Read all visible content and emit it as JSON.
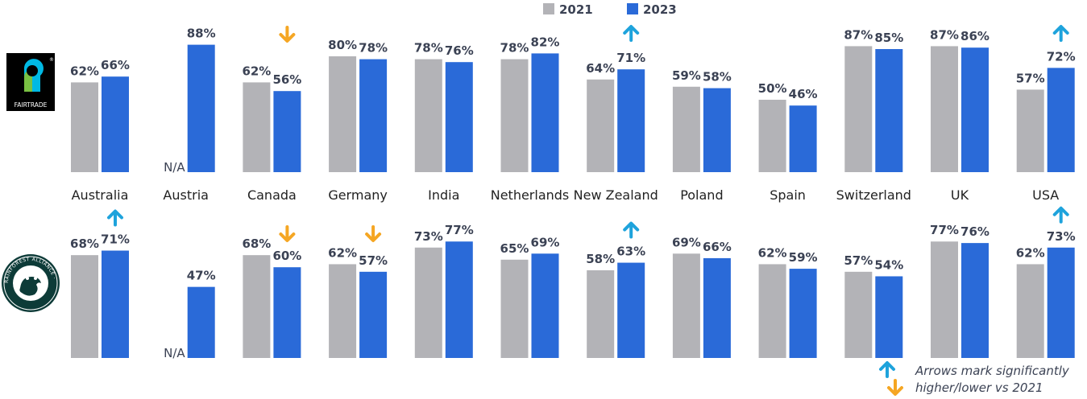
{
  "colors": {
    "y2021": "#b3b3b7",
    "y2023": "#2a6ad8",
    "up": "#1ea3dc",
    "down": "#f5a623",
    "text": "#3b4254"
  },
  "legend": {
    "items": [
      "2021",
      "2023"
    ]
  },
  "na_label": "N/A",
  "note": {
    "line1": "Arrows mark significantly",
    "line2": "higher/lower vs 2021"
  },
  "logos": {
    "fairtrade": {
      "text": "FAIRTRADE",
      "reg": "®"
    },
    "rainforest": {
      "text": "RAINFOREST ALLIANCE · PEOPLE & NATURE"
    }
  },
  "chart_data": [
    {
      "type": "bar",
      "title": "Fairtrade",
      "categories": [
        "Australia",
        "Austria",
        "Canada",
        "Germany",
        "India",
        "Netherlands",
        "New Zealand",
        "Poland",
        "Spain",
        "Switzerland",
        "UK",
        "USA"
      ],
      "series": [
        {
          "name": "2021",
          "values": [
            62,
            null,
            62,
            80,
            78,
            78,
            64,
            59,
            50,
            87,
            87,
            57
          ]
        },
        {
          "name": "2023",
          "values": [
            66,
            88,
            56,
            78,
            76,
            82,
            71,
            58,
            46,
            85,
            86,
            72
          ]
        }
      ],
      "labels_2021": [
        "62%",
        "",
        "62%",
        "80%",
        "78%",
        "78%",
        "64%",
        "59%",
        "50%",
        "87%",
        "87%",
        "57%"
      ],
      "labels_2023": [
        "66%",
        "88%",
        "56%",
        "78%",
        "76%",
        "82%",
        "71%",
        "58%",
        "46%",
        "85%",
        "86%",
        "72%"
      ],
      "significance": [
        "none",
        "none",
        "down",
        "none",
        "none",
        "none",
        "up",
        "none",
        "none",
        "none",
        "none",
        "up"
      ],
      "ylim": [
        0,
        100
      ],
      "unit": "%"
    },
    {
      "type": "bar",
      "title": "Rainforest Alliance",
      "categories": [
        "Australia",
        "Austria",
        "Canada",
        "Germany",
        "India",
        "Netherlands",
        "New Zealand",
        "Poland",
        "Spain",
        "Switzerland",
        "UK",
        "USA"
      ],
      "series": [
        {
          "name": "2021",
          "values": [
            68,
            null,
            68,
            62,
            73,
            65,
            58,
            69,
            62,
            57,
            77,
            62
          ]
        },
        {
          "name": "2023",
          "values": [
            71,
            47,
            60,
            57,
            77,
            69,
            63,
            66,
            59,
            54,
            76,
            73
          ]
        }
      ],
      "labels_2021": [
        "68%",
        "",
        "68%",
        "62%",
        "73%",
        "65%",
        "58%",
        "69%",
        "62%",
        "57%",
        "77%",
        "62%"
      ],
      "labels_2023": [
        "71%",
        "47%",
        "60%",
        "57%",
        "77%",
        "69%",
        "63%",
        "66%",
        "59%",
        "54%",
        "76%",
        "73%"
      ],
      "significance": [
        "up",
        "none",
        "down",
        "down",
        "none",
        "none",
        "up",
        "none",
        "none",
        "none",
        "none",
        "up"
      ],
      "ylim": [
        0,
        100
      ],
      "unit": "%"
    }
  ]
}
